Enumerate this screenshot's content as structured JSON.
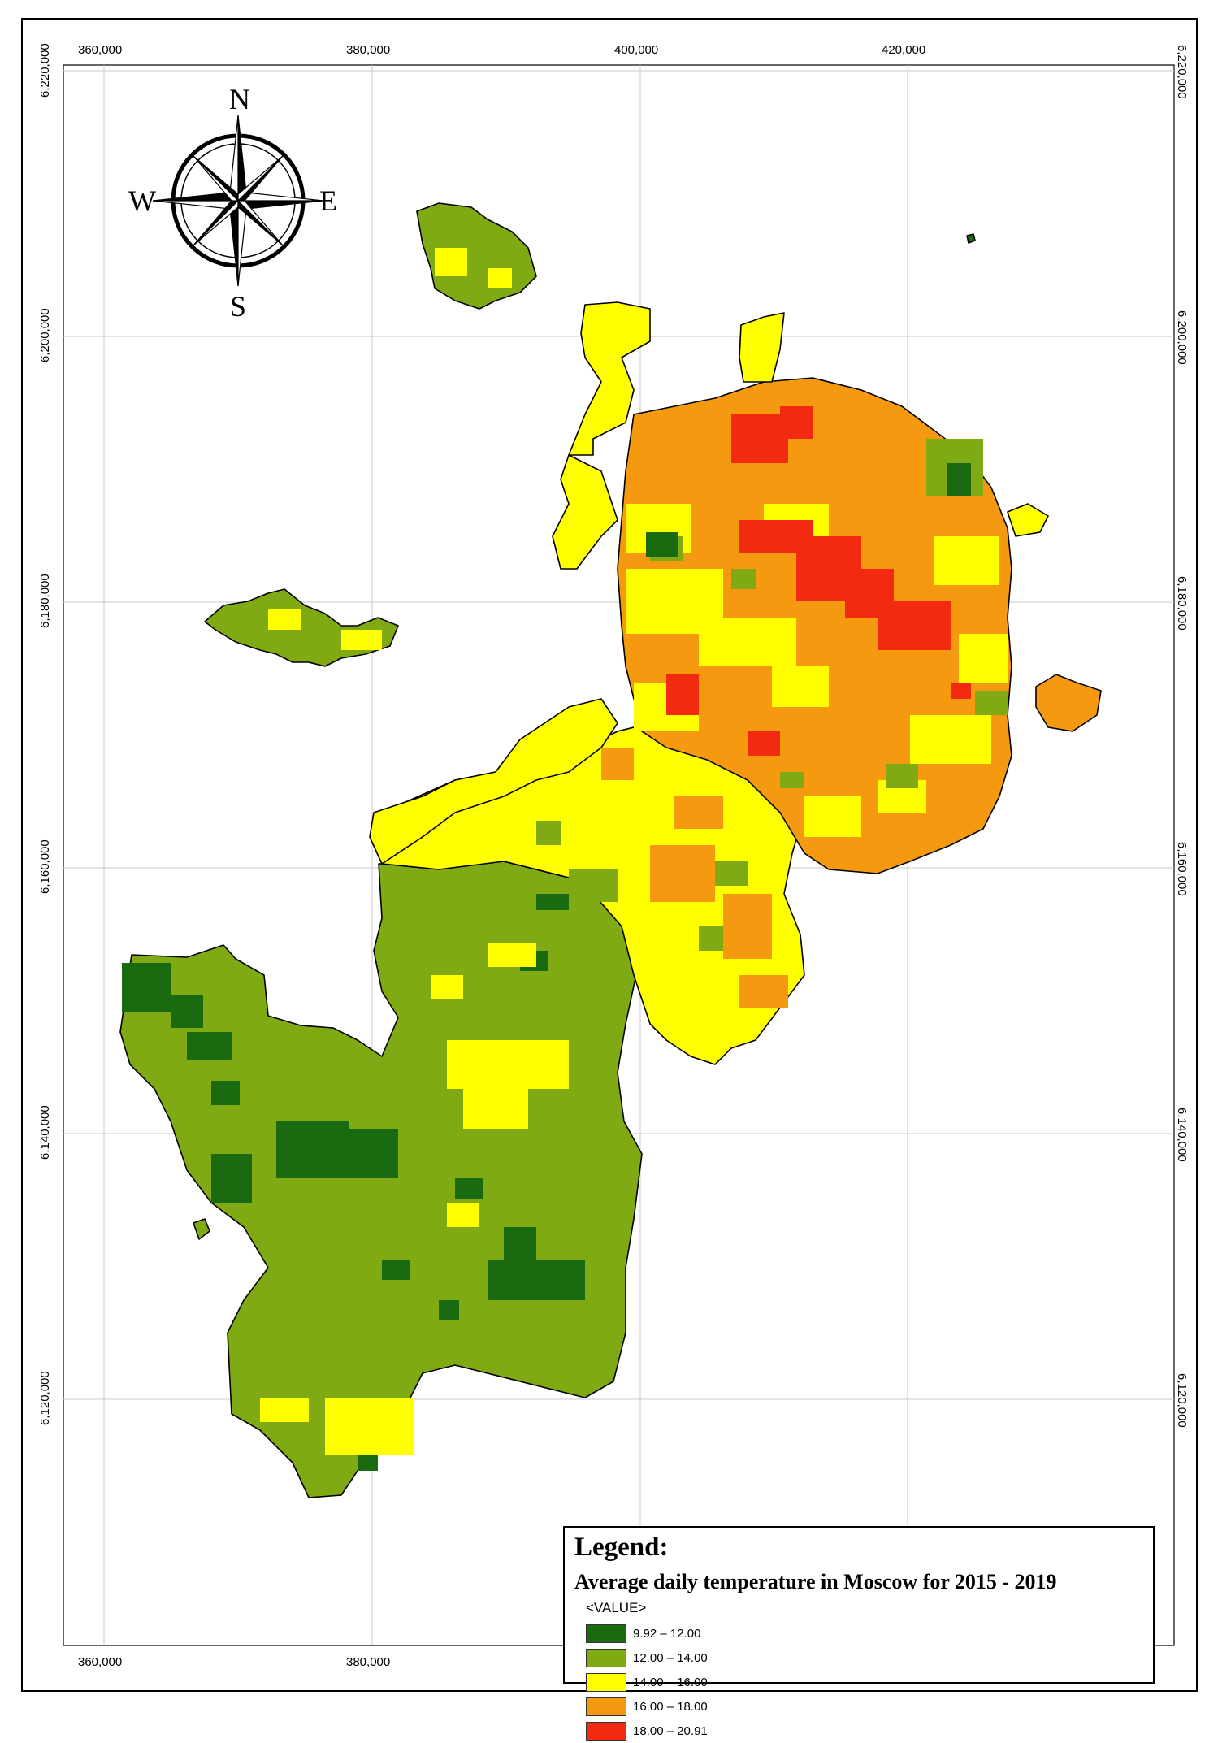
{
  "map": {
    "x_ticks": [
      "360000",
      "380000",
      "400000",
      "420000"
    ],
    "y_ticks": [
      "6220000",
      "6200000",
      "6180000",
      "6160000",
      "6140000",
      "6120000"
    ],
    "compass": {
      "north": "N",
      "south": "S",
      "east": "E",
      "west": "W"
    }
  },
  "legend": {
    "title": "Legend:",
    "subtitle": "Average daily temperature in Moscow for 2015 - 2019",
    "field": "<VALUE>",
    "classes": [
      {
        "label": "9.92 – 12.00",
        "color": "#1a6b10"
      },
      {
        "label": "12.00 – 14.00",
        "color": "#7faa14"
      },
      {
        "label": "14.00 – 16.00",
        "color": "#ffff00"
      },
      {
        "label": "16.00 – 18.00",
        "color": "#f59a10"
      },
      {
        "label": "18.00 – 20.91",
        "color": "#f22a10"
      }
    ]
  }
}
